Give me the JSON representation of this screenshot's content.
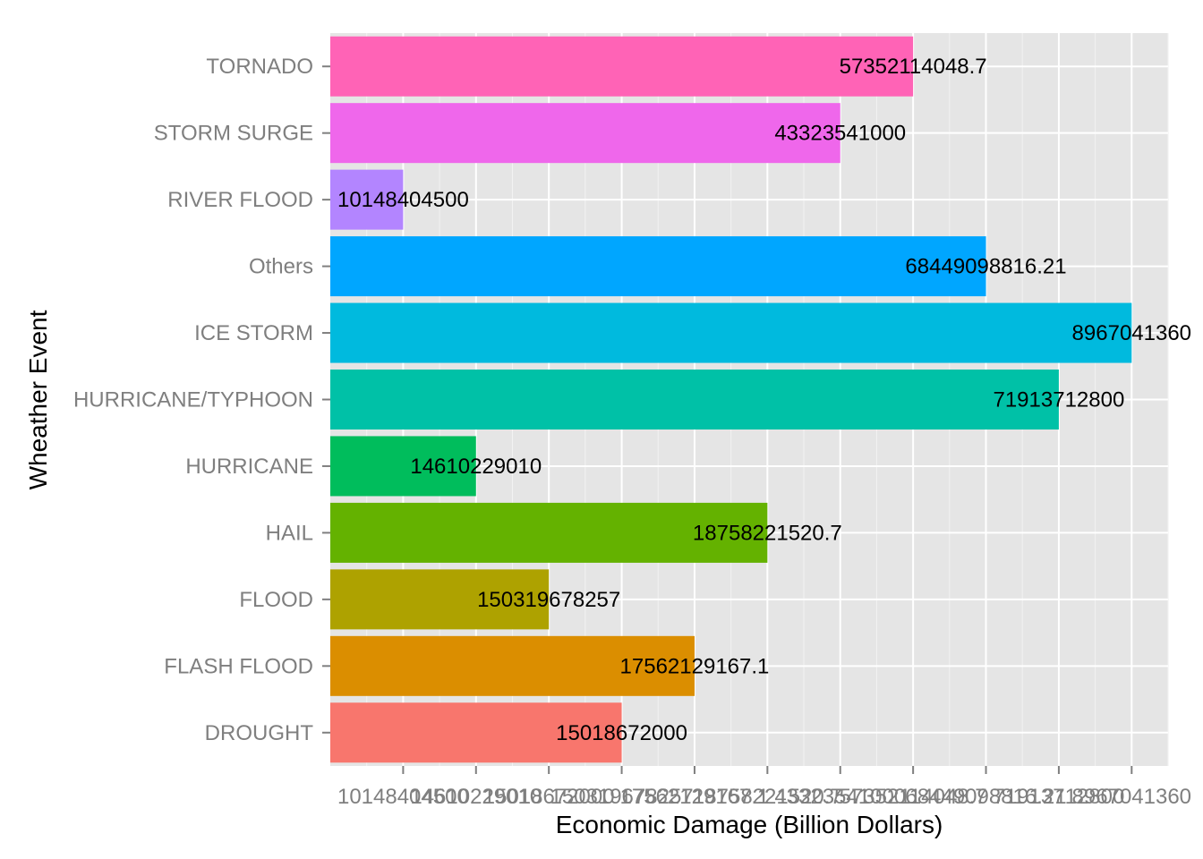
{
  "chart_data": {
    "type": "bar",
    "orientation": "horizontal",
    "xlabel": "Economic Damage (Billion Dollars)",
    "ylabel": "Wheather Event",
    "categories": [
      "DROUGHT",
      "FLASH FLOOD",
      "FLOOD",
      "HAIL",
      "HURRICANE",
      "HURRICANE/TYPHOON",
      "ICE STORM",
      "Others",
      "RIVER FLOOD",
      "STORM SURGE",
      "TORNADO"
    ],
    "values": [
      4,
      5,
      3,
      6,
      2,
      10,
      11,
      9,
      1,
      7,
      8
    ],
    "data_labels": [
      "15018672000",
      "17562129167.1",
      "150319678257",
      "18758221520.7",
      "14610229010",
      "71913712800",
      "8967041360",
      "68449098816.21",
      "10148404500",
      "43323541000",
      "57352114048.7"
    ],
    "x_tick_labels": [
      "10148404500",
      "14610229010",
      "15018672000",
      "150319678257",
      "17562129167.1",
      "18758221520.7",
      "43323541000",
      "57352114048.7",
      "68449098816.21",
      "71913712800",
      "8967041360"
    ],
    "xlim": [
      0,
      11.5
    ],
    "colors": [
      "#F8766D",
      "#DB8E00",
      "#AEA200",
      "#64B200",
      "#00BD5C",
      "#00C1A7",
      "#00BADE",
      "#00A6FF",
      "#B385FF",
      "#EF67EB",
      "#FF63B6"
    ],
    "panel_background": "#E5E5E5",
    "grid": true,
    "legend": "none"
  }
}
